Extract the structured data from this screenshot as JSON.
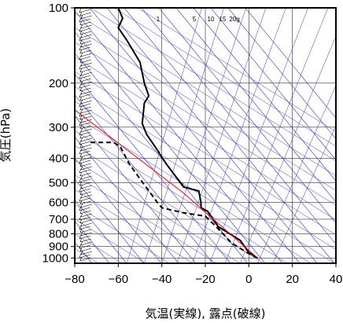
{
  "chart_data": {
    "type": "line",
    "title": "",
    "xlabel": "気温(実線), 露点(破線)",
    "ylabel": "気圧(hPa)",
    "x_scale": "linear",
    "y_scale": "log",
    "y_inverted": true,
    "xlim": [
      -80,
      40
    ],
    "ylim": [
      1050,
      100
    ],
    "x_ticks": [
      -80,
      -60,
      -40,
      -20,
      0,
      20,
      40
    ],
    "x_tick_labels": [
      "−80",
      "−60",
      "−40",
      "−20",
      "0",
      "20",
      "40"
    ],
    "y_ticks": [
      1000,
      900,
      800,
      700,
      600,
      500,
      400,
      300,
      200,
      100
    ],
    "y_tick_labels": [
      "1000",
      "900",
      "800",
      "700",
      "600",
      "500",
      "400",
      "300",
      "200",
      "100"
    ],
    "grid": true,
    "mixing_ratio_labels": [
      "1",
      "5",
      "10",
      "15",
      "20g"
    ],
    "series": [
      {
        "kind": "temperature",
        "style": "solid",
        "color": "#000000",
        "points": [
          {
            "t": 4,
            "p": 1000
          },
          {
            "t": 0,
            "p": 950
          },
          {
            "t": -4,
            "p": 850
          },
          {
            "t": -14,
            "p": 750
          },
          {
            "t": -19,
            "p": 650
          },
          {
            "t": -22,
            "p": 630
          },
          {
            "t": -22,
            "p": 600
          },
          {
            "t": -23,
            "p": 540
          },
          {
            "t": -30,
            "p": 520
          },
          {
            "t": -38,
            "p": 420
          },
          {
            "t": -43,
            "p": 360
          },
          {
            "t": -47,
            "p": 320
          },
          {
            "t": -49,
            "p": 290
          },
          {
            "t": -48,
            "p": 240
          },
          {
            "t": -46,
            "p": 225
          },
          {
            "t": -48,
            "p": 200
          },
          {
            "t": -50,
            "p": 165
          },
          {
            "t": -56,
            "p": 135
          },
          {
            "t": -60,
            "p": 120
          },
          {
            "t": -58,
            "p": 110
          },
          {
            "t": -60,
            "p": 100
          }
        ]
      },
      {
        "kind": "dewpoint",
        "style": "dashed",
        "color": "#000000",
        "points": [
          {
            "t": 4,
            "p": 1000
          },
          {
            "t": -1,
            "p": 950
          },
          {
            "t": -8,
            "p": 870
          },
          {
            "t": -15,
            "p": 750
          },
          {
            "t": -20,
            "p": 680
          },
          {
            "t": -30,
            "p": 660
          },
          {
            "t": -40,
            "p": 630
          },
          {
            "t": -42,
            "p": 600
          },
          {
            "t": -48,
            "p": 510
          },
          {
            "t": -55,
            "p": 420
          },
          {
            "t": -59,
            "p": 360
          },
          {
            "t": -62,
            "p": 345
          },
          {
            "t": -74,
            "p": 345
          }
        ]
      },
      {
        "kind": "parcel",
        "style": "solid",
        "color": "#ff0000",
        "points": [
          {
            "t": 4,
            "p": 1000
          },
          {
            "t": -30,
            "p": 550
          },
          {
            "t": -82,
            "p": 248
          }
        ]
      }
    ],
    "reference_line_color": "#3333cc",
    "wind_barbs_present": true
  }
}
